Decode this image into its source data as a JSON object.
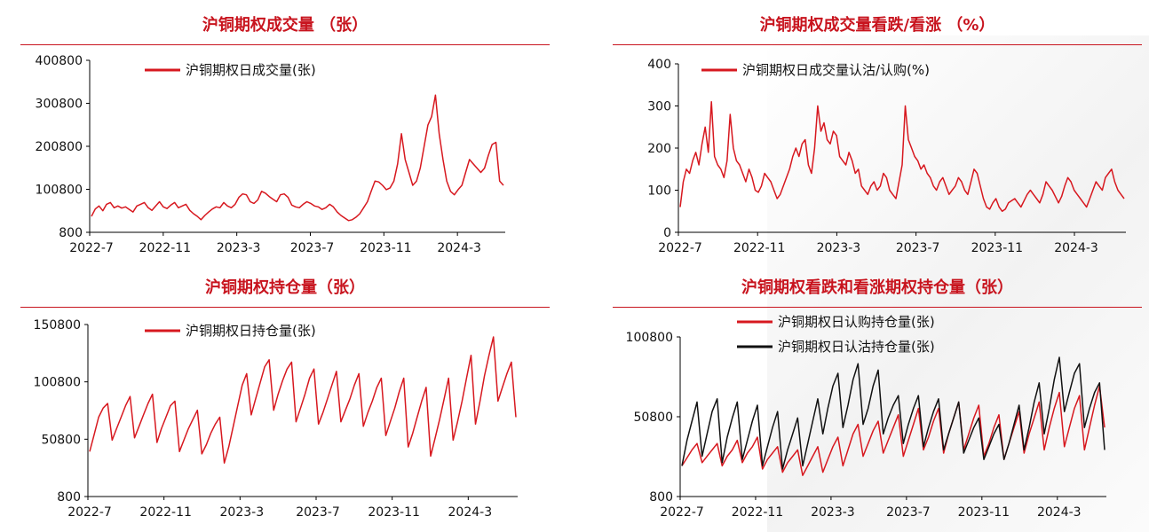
{
  "colors": {
    "title": "#c8141e",
    "call": "#d7181f",
    "put": "#111111"
  },
  "chart_data": [
    {
      "id": "volume",
      "type": "line",
      "title": "沪铜期权成交量 （张）",
      "x_ticks": [
        "2022-7",
        "2022-11",
        "2023-3",
        "2023-7",
        "2023-11",
        "2024-3"
      ],
      "y_ticks": [
        "400800",
        "300800",
        "200800",
        "100800",
        "800"
      ],
      "ylim": [
        800,
        400800
      ],
      "legend_position": "top-center",
      "series": [
        {
          "name": "沪铜期权日成交量(张)",
          "color": "#d7181f",
          "values": [
            38000,
            55000,
            62000,
            51000,
            66000,
            70000,
            58000,
            62000,
            57000,
            60000,
            54000,
            48000,
            62000,
            66000,
            70000,
            58000,
            52000,
            62000,
            72000,
            60000,
            56000,
            64000,
            70000,
            58000,
            62000,
            66000,
            52000,
            44000,
            38000,
            30000,
            40000,
            48000,
            55000,
            60000,
            58000,
            70000,
            62000,
            58000,
            66000,
            82000,
            90000,
            88000,
            72000,
            68000,
            76000,
            96000,
            92000,
            84000,
            78000,
            72000,
            88000,
            90000,
            82000,
            64000,
            60000,
            58000,
            66000,
            72000,
            68000,
            62000,
            60000,
            54000,
            58000,
            66000,
            60000,
            48000,
            40000,
            34000,
            28000,
            30000,
            36000,
            44000,
            58000,
            72000,
            96000,
            120000,
            118000,
            110000,
            100000,
            104000,
            120000,
            160000,
            230000,
            170000,
            140000,
            110000,
            120000,
            150000,
            200000,
            250000,
            270000,
            320000,
            230000,
            170000,
            120000,
            96000,
            88000,
            100000,
            110000,
            140000,
            170000,
            160000,
            150000,
            140000,
            150000,
            180000,
            205000,
            210000,
            120000,
            110000
          ]
        }
      ]
    },
    {
      "id": "volume-ratio",
      "type": "line",
      "title": "沪铜期权成交量看跌/看涨 （%）",
      "x_ticks": [
        "2022-7",
        "2022-11",
        "2023-3",
        "2023-7",
        "2023-11",
        "2024-3"
      ],
      "y_ticks": [
        "400",
        "300",
        "200",
        "100",
        "0"
      ],
      "ylim": [
        0,
        400
      ],
      "legend_position": "top-center",
      "series": [
        {
          "name": "沪铜期权日成交量认沽/认购(%)",
          "color": "#d7181f",
          "values": [
            60,
            120,
            150,
            140,
            170,
            190,
            160,
            210,
            250,
            190,
            310,
            180,
            160,
            150,
            130,
            170,
            280,
            200,
            170,
            160,
            140,
            120,
            150,
            130,
            100,
            95,
            110,
            140,
            130,
            120,
            100,
            80,
            90,
            110,
            130,
            150,
            180,
            200,
            180,
            210,
            220,
            160,
            140,
            200,
            300,
            240,
            260,
            220,
            210,
            240,
            230,
            180,
            170,
            160,
            190,
            170,
            140,
            150,
            110,
            100,
            90,
            110,
            120,
            100,
            110,
            140,
            130,
            100,
            90,
            80,
            120,
            160,
            300,
            220,
            200,
            180,
            170,
            150,
            160,
            140,
            130,
            110,
            100,
            120,
            130,
            110,
            90,
            100,
            110,
            130,
            120,
            100,
            90,
            120,
            150,
            140,
            110,
            80,
            60,
            55,
            70,
            80,
            60,
            50,
            55,
            70,
            75,
            80,
            70,
            60,
            75,
            90,
            100,
            90,
            80,
            70,
            90,
            120,
            110,
            100,
            85,
            70,
            85,
            110,
            130,
            120,
            100,
            90,
            80,
            70,
            60,
            80,
            100,
            120,
            110,
            100,
            130,
            140,
            150,
            120,
            100,
            90,
            80
          ]
        }
      ]
    },
    {
      "id": "open-interest",
      "type": "line",
      "title": "沪铜期权持仓量（张）",
      "x_ticks": [
        "2022-7",
        "2022-11",
        "2023-3",
        "2023-7",
        "2023-11",
        "2024-3"
      ],
      "y_ticks": [
        "150800",
        "100800",
        "50800",
        "800"
      ],
      "ylim": [
        800,
        150800
      ],
      "legend_position": "top-center",
      "series": [
        {
          "name": "沪铜期权日持仓量(张)",
          "color": "#d7181f",
          "values": [
            40000,
            55000,
            70000,
            78000,
            82000,
            50000,
            60000,
            70000,
            80000,
            88000,
            52000,
            62000,
            72000,
            82000,
            90000,
            48000,
            60000,
            70000,
            80000,
            84000,
            40000,
            50000,
            60000,
            68000,
            76000,
            38000,
            46000,
            56000,
            64000,
            70000,
            30000,
            44000,
            62000,
            80000,
            98000,
            108000,
            72000,
            86000,
            100000,
            114000,
            120000,
            76000,
            90000,
            102000,
            112000,
            118000,
            66000,
            78000,
            90000,
            104000,
            112000,
            64000,
            74000,
            86000,
            98000,
            110000,
            66000,
            76000,
            86000,
            98000,
            108000,
            62000,
            74000,
            84000,
            96000,
            104000,
            54000,
            66000,
            78000,
            92000,
            104000,
            44000,
            56000,
            70000,
            84000,
            96000,
            36000,
            52000,
            68000,
            86000,
            104000,
            50000,
            66000,
            84000,
            104000,
            124000,
            64000,
            84000,
            106000,
            124000,
            140000,
            84000,
            96000,
            108000,
            118000,
            70000
          ]
        }
      ]
    },
    {
      "id": "call-put-oi",
      "type": "line",
      "title": "沪铜期权看跌和看涨期权持仓量（张）",
      "x_ticks": [
        "2022-7",
        "2022-11",
        "2023-3",
        "2023-7",
        "2023-11",
        "2024-3"
      ],
      "y_ticks": [
        "100800",
        "50800",
        "800"
      ],
      "ylim": [
        800,
        100800
      ],
      "legend_position": "top-center",
      "series": [
        {
          "name": "沪铜期权日认购持仓量(张)",
          "color": "#d7181f",
          "values": [
            20000,
            25000,
            30000,
            34000,
            22000,
            26000,
            30000,
            34000,
            20000,
            26000,
            30000,
            36000,
            22000,
            28000,
            32000,
            38000,
            18000,
            24000,
            28000,
            32000,
            16000,
            22000,
            26000,
            30000,
            14000,
            20000,
            26000,
            32000,
            16000,
            24000,
            32000,
            38000,
            20000,
            30000,
            40000,
            46000,
            26000,
            34000,
            42000,
            48000,
            28000,
            36000,
            44000,
            52000,
            26000,
            36000,
            46000,
            56000,
            30000,
            38000,
            48000,
            56000,
            28000,
            40000,
            50000,
            60000,
            30000,
            40000,
            50000,
            58000,
            26000,
            34000,
            44000,
            52000,
            24000,
            34000,
            44000,
            54000,
            28000,
            40000,
            50000,
            60000,
            30000,
            44000,
            56000,
            66000,
            32000,
            44000,
            56000,
            64000,
            30000,
            44000,
            58000,
            70000,
            44000
          ]
        },
        {
          "name": "沪铜期权日认沽持仓量(张)",
          "color": "#111111",
          "values": [
            20000,
            36000,
            48000,
            60000,
            26000,
            40000,
            54000,
            62000,
            22000,
            38000,
            50000,
            60000,
            24000,
            36000,
            48000,
            58000,
            20000,
            32000,
            44000,
            54000,
            18000,
            30000,
            40000,
            50000,
            20000,
            34000,
            48000,
            62000,
            40000,
            56000,
            70000,
            78000,
            44000,
            58000,
            74000,
            84000,
            46000,
            56000,
            70000,
            80000,
            40000,
            50000,
            58000,
            64000,
            34000,
            46000,
            56000,
            64000,
            32000,
            44000,
            54000,
            62000,
            30000,
            40000,
            50000,
            60000,
            28000,
            36000,
            44000,
            50000,
            24000,
            32000,
            40000,
            46000,
            24000,
            34000,
            46000,
            58000,
            30000,
            44000,
            60000,
            72000,
            40000,
            56000,
            74000,
            88000,
            54000,
            66000,
            78000,
            84000,
            44000,
            56000,
            66000,
            72000,
            30000
          ]
        }
      ]
    }
  ]
}
